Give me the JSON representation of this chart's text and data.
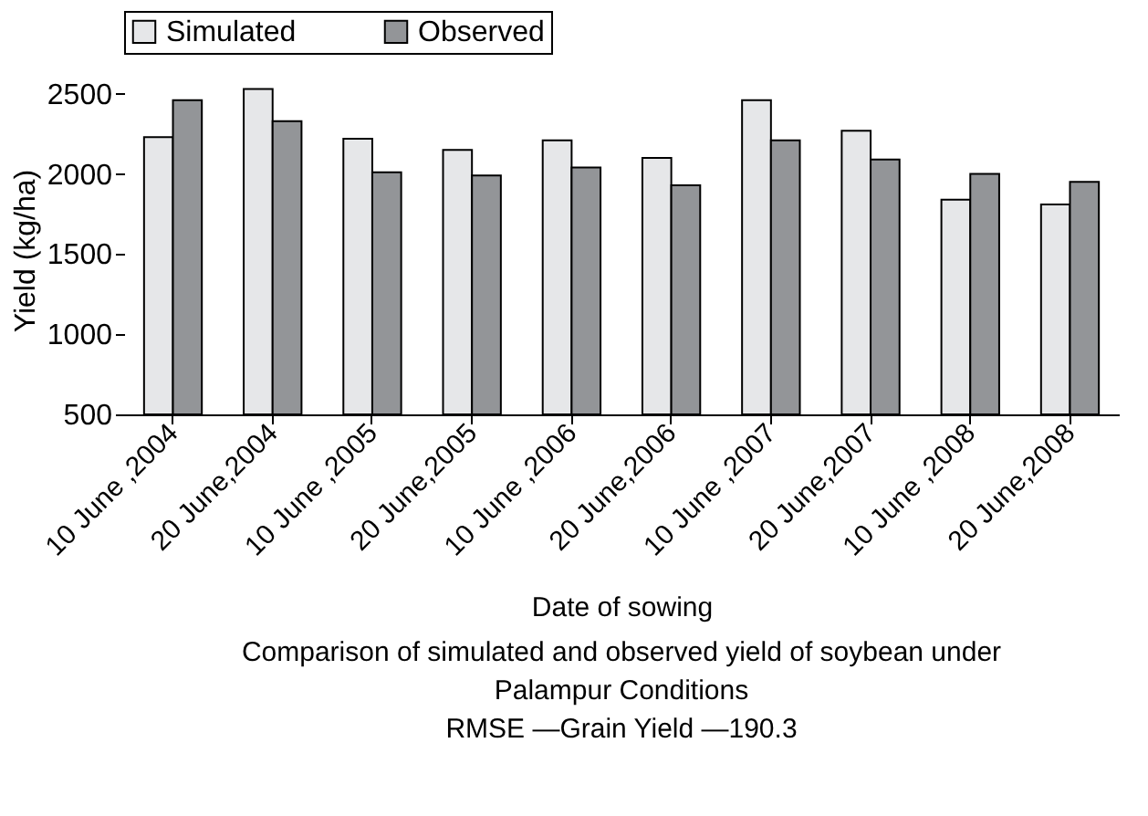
{
  "chart_data": {
    "type": "bar",
    "ylabel": "Yield (kg/ha)",
    "xlabel": "Date of sowing",
    "categories": [
      "10 June ,2004",
      "20 June,2004",
      "10 June ,2005",
      "20 June,2005",
      "10 June ,2006",
      "20 June,2006",
      "10 June ,2007",
      "20 June,2007",
      "10 June ,2008",
      "20 June,2008"
    ],
    "series": [
      {
        "name": "Simulated",
        "color": "#e6e7e9",
        "values": [
          2230,
          2530,
          2220,
          2150,
          2210,
          2100,
          2460,
          2270,
          1840,
          1810
        ]
      },
      {
        "name": "Observed",
        "color": "#939598",
        "values": [
          2460,
          2330,
          2010,
          1990,
          2040,
          1930,
          2210,
          2090,
          2000,
          1950
        ]
      }
    ],
    "ylim": [
      500,
      2550
    ],
    "yticks": [
      500,
      1000,
      1500,
      2000,
      2500
    ],
    "grid": false,
    "legend": "top",
    "annotations": [
      "Comparison of simulated and observed yield of soybean under Palampur Conditions",
      "RMSE —Grain Yield —190.3"
    ]
  }
}
